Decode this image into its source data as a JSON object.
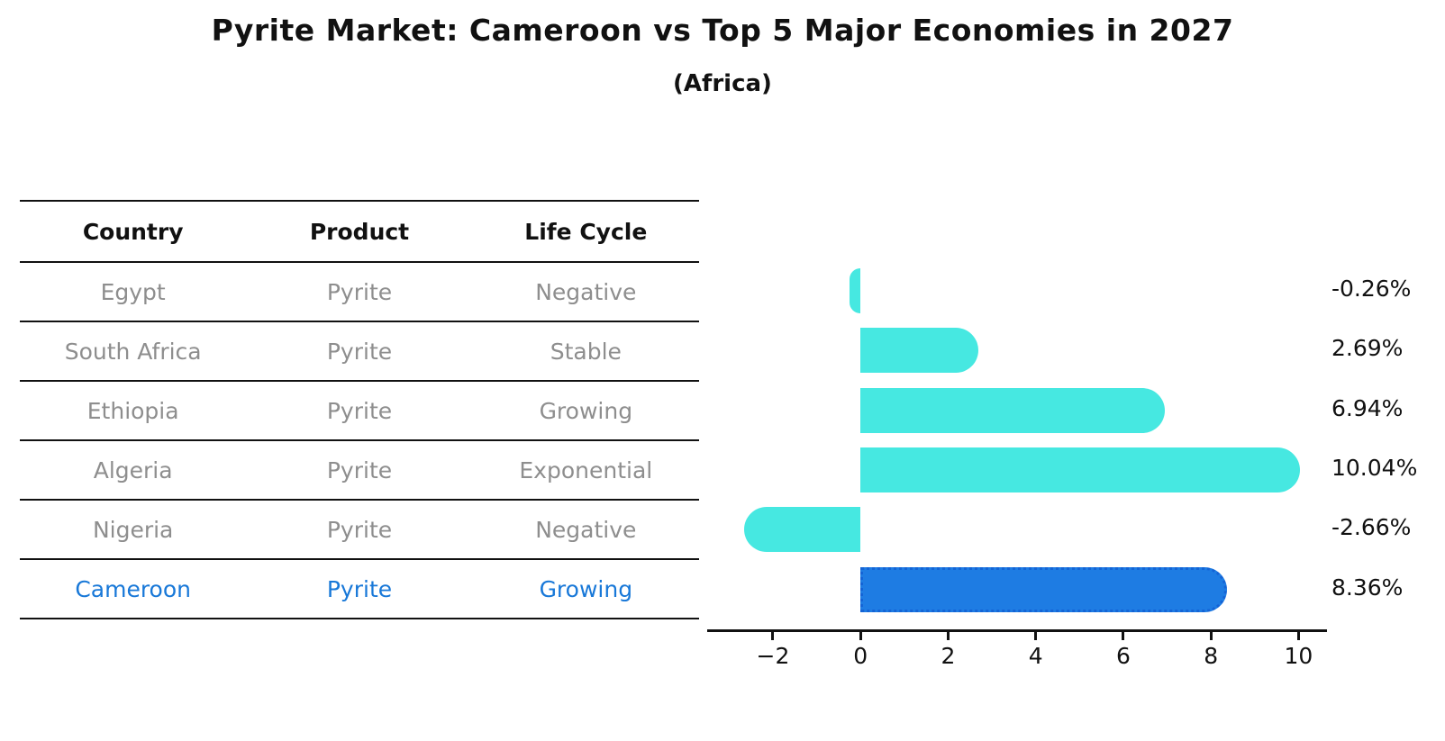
{
  "title": "Pyrite Market: Cameroon vs Top 5 Major Economies in 2027",
  "subtitle": "(Africa)",
  "colors": {
    "bar_turquoise": "#46E8E1",
    "highlight_blue": "#1E7CE3",
    "highlight_border_blue": "#1464D6",
    "accent_blue": "#1878D8",
    "text_gray": "#8E8E8E",
    "axis_black": "#111111"
  },
  "table": {
    "headers": [
      "Country",
      "Product",
      "Life Cycle"
    ],
    "rows": [
      {
        "country": "Egypt",
        "product": "Pyrite",
        "life_cycle": "Negative",
        "highlight": false
      },
      {
        "country": "South Africa",
        "product": "Pyrite",
        "life_cycle": "Stable",
        "highlight": false
      },
      {
        "country": "Ethiopia",
        "product": "Pyrite",
        "life_cycle": "Growing",
        "highlight": false
      },
      {
        "country": "Algeria",
        "product": "Pyrite",
        "life_cycle": "Exponential",
        "highlight": false
      },
      {
        "country": "Nigeria",
        "product": "Pyrite",
        "life_cycle": "Negative",
        "highlight": false
      },
      {
        "country": "Cameroon",
        "product": "Pyrite",
        "life_cycle": "Growing",
        "highlight": true
      }
    ]
  },
  "chart_data": {
    "type": "bar",
    "orientation": "horizontal",
    "title": "Pyrite Market: Cameroon vs Top 5 Major Economies in 2027",
    "subtitle": "(Africa)",
    "categories": [
      "Egypt",
      "South Africa",
      "Ethiopia",
      "Algeria",
      "Nigeria",
      "Cameroon"
    ],
    "values": [
      -0.26,
      2.69,
      6.94,
      10.04,
      -2.66,
      8.36
    ],
    "bar_labels": [
      "-0.26%",
      "2.69%",
      "6.94%",
      "10.04%",
      "-2.66%",
      "8.36%"
    ],
    "unit": "%",
    "xlim": [
      -3.5,
      10.65
    ],
    "xticks": [
      -2,
      0,
      2,
      4,
      6,
      8,
      10
    ],
    "xtick_labels": [
      "−2",
      "0",
      "2",
      "4",
      "6",
      "8",
      "10"
    ],
    "grid": false,
    "legend": false,
    "highlight_index": 5,
    "bar_color": "#46E8E1",
    "highlight_color": "#1E7CE3",
    "highlight_border_color": "#1464D6"
  }
}
